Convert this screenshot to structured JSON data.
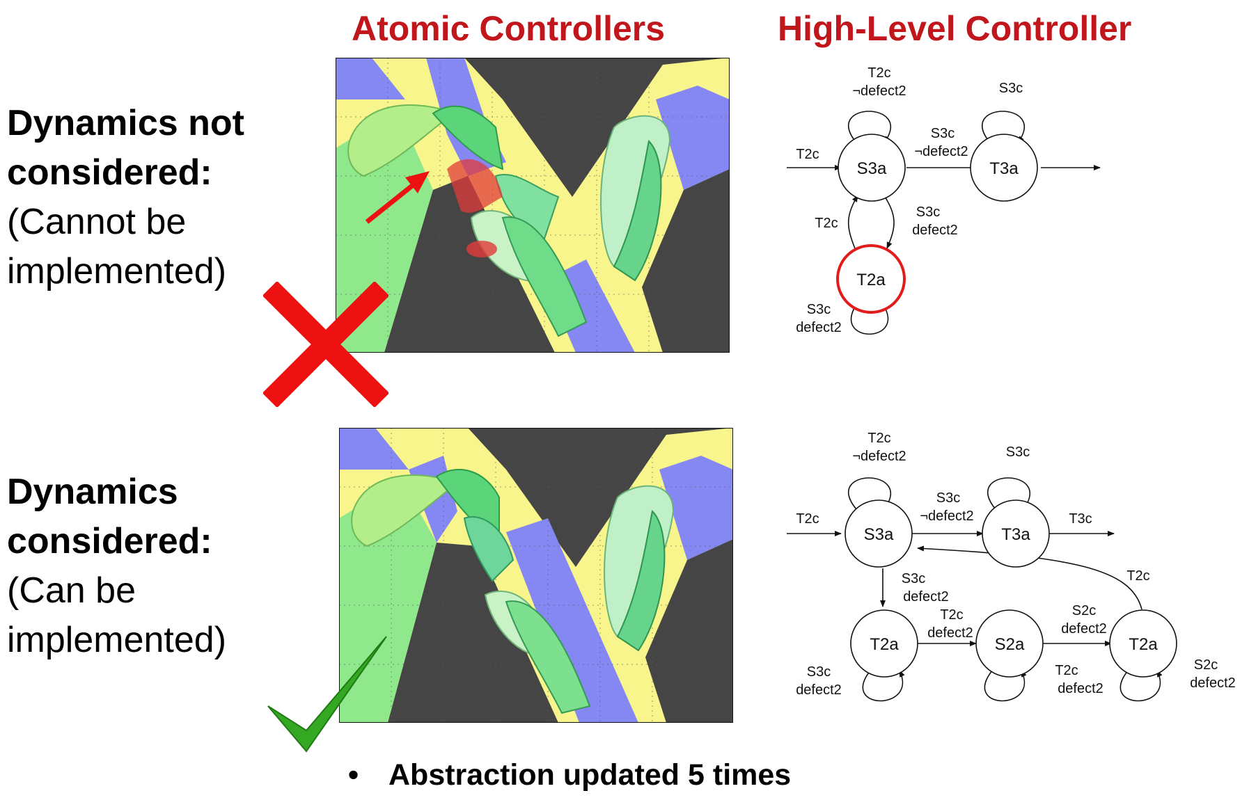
{
  "headers": {
    "left": "Atomic Controllers",
    "right": "High-Level Controller"
  },
  "rows": [
    {
      "title_line1": "Dynamics not",
      "title_line2": "considered:",
      "note_line1": "(Cannot be",
      "note_line2": "implemented)",
      "result_icon": "red-cross-icon"
    },
    {
      "title_line1": "Dynamics",
      "title_line2": "considered:",
      "note_line1": "(Can be",
      "note_line2": "implemented)",
      "result_icon": "green-check-icon"
    }
  ],
  "colors": {
    "header": "#c0161c",
    "region_green": "#8fe88b",
    "region_yellow": "#f7f58c",
    "region_blue": "#8587f3",
    "region_obstacle": "#454545",
    "cross": "#ee1111",
    "check": "#35a823",
    "highlight_state": "#e21b1b"
  },
  "top_graph": {
    "nodes": {
      "s3a": "S3a",
      "t3a": "T3a",
      "t2a": "T2a"
    },
    "labels": {
      "in": "T2c",
      "s3a_self_1": "T2c",
      "s3a_self_2": "¬defect2",
      "t3a_self": "S3c",
      "s3a_t3a_1": "S3c",
      "s3a_t3a_2": "¬defect2",
      "t2a_s3a": "T2c",
      "s3a_t2a_1": "S3c",
      "s3a_t2a_2": "defect2",
      "t2a_self_1": "S3c",
      "t2a_self_2": "defect2"
    }
  },
  "bottom_graph": {
    "nodes": {
      "s3a": "S3a",
      "t3a": "T3a",
      "t2a_1": "T2a",
      "s2a": "S2a",
      "t2a_2": "T2a"
    },
    "labels": {
      "in": "T2c",
      "s3a_self_1": "T2c",
      "s3a_self_2": "¬defect2",
      "t3a_self": "S3c",
      "s3a_t3a_1": "S3c",
      "s3a_t3a_2": "¬defect2",
      "t3a_out": "T3c",
      "s3a_t2a_1": "S3c",
      "s3a_t2a_2": "defect2",
      "t2a_s2a_1": "T2c",
      "t2a_s2a_2": "defect2",
      "s2a_t2a_1": "S2c",
      "s2a_t2a_2": "defect2",
      "back_edge": "T2c",
      "t2a1_self_1": "S3c",
      "t2a1_self_2": "defect2",
      "s2a_self_1": "T2c",
      "s2a_self_2": "defect2",
      "t2a2_self_1": "S2c",
      "t2a2_self_2": "defect2"
    }
  },
  "bullet": {
    "symbol": "•",
    "text": "Abstraction updated 5 times"
  }
}
